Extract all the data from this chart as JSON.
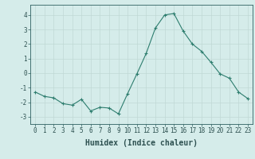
{
  "x": [
    0,
    1,
    2,
    3,
    4,
    5,
    6,
    7,
    8,
    9,
    10,
    11,
    12,
    13,
    14,
    15,
    16,
    17,
    18,
    19,
    20,
    21,
    22,
    23
  ],
  "y": [
    -1.3,
    -1.6,
    -1.7,
    -2.1,
    -2.2,
    -1.8,
    -2.6,
    -2.35,
    -2.4,
    -2.8,
    -1.4,
    -0.05,
    1.35,
    3.1,
    4.0,
    4.1,
    2.9,
    2.0,
    1.5,
    0.75,
    -0.05,
    -0.35,
    -1.3,
    -1.75
  ],
  "line_color": "#2d7d6e",
  "marker": "+",
  "marker_size": 3.5,
  "bg_color": "#d5ecea",
  "grid_color": "#c0d8d5",
  "xlabel": "Humidex (Indice chaleur)",
  "ylim": [
    -3.5,
    4.7
  ],
  "xlim": [
    -0.5,
    23.5
  ],
  "yticks": [
    -3,
    -2,
    -1,
    0,
    1,
    2,
    3,
    4
  ],
  "xticks": [
    0,
    1,
    2,
    3,
    4,
    5,
    6,
    7,
    8,
    9,
    10,
    11,
    12,
    13,
    14,
    15,
    16,
    17,
    18,
    19,
    20,
    21,
    22,
    23
  ],
  "tick_label_fontsize": 5.5,
  "xlabel_fontsize": 7.0,
  "tick_color": "#2d6060",
  "label_color": "#2d5050"
}
